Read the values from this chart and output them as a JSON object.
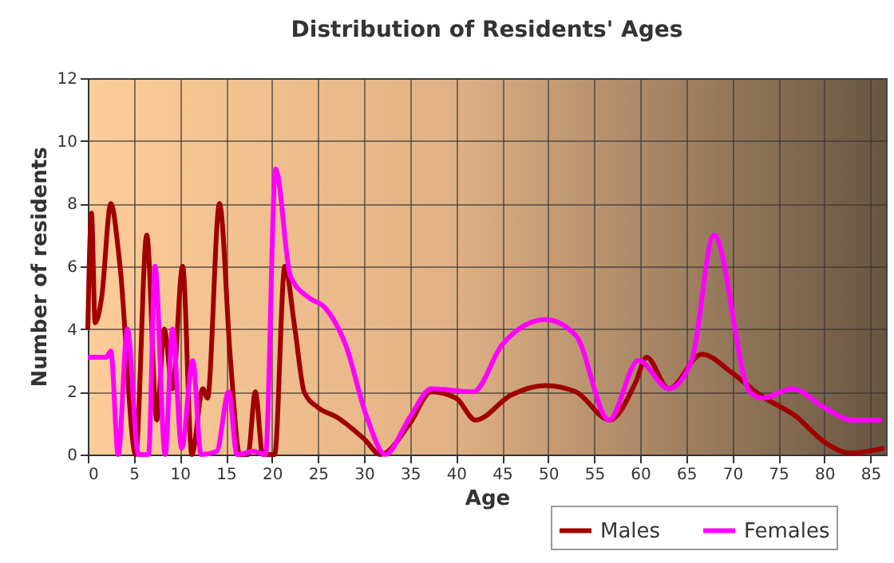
{
  "chart_data": {
    "type": "line",
    "title": "Distribution of Residents' Ages",
    "xlabel": "Age",
    "ylabel": "Number of residents",
    "xlim": [
      0,
      86.7
    ],
    "xticks": [
      0,
      5,
      10,
      15,
      20,
      25,
      30,
      35,
      40,
      45,
      50,
      55,
      60,
      65,
      70,
      75,
      80,
      85
    ],
    "ylim": [
      0,
      12
    ],
    "yticks": [
      0,
      2,
      4,
      6,
      8,
      10,
      12
    ],
    "grid": true,
    "legend": "bottom",
    "series": [
      {
        "name": "Males",
        "color": "#a00000",
        "x": [
          0,
          0.4,
          0.8,
          1.5,
          2.5,
          3.5,
          5.2,
          6.4,
          7.5,
          8.3,
          9.2,
          10.3,
          11.3,
          12.5,
          13,
          14.3,
          15.5,
          16.5,
          17.4,
          18.2,
          19,
          20.3,
          21.4,
          22.5,
          23.5,
          25,
          27,
          30,
          31.8,
          35,
          37.3,
          40,
          42.1,
          46,
          49.7,
          53,
          56.7,
          59.5,
          60.7,
          63.1,
          66.7,
          70,
          73,
          77,
          80,
          82.8,
          86.5
        ],
        "values": [
          4,
          7.7,
          4.2,
          5,
          8,
          6,
          0,
          7,
          1.1,
          4,
          2.1,
          6,
          0,
          2.1,
          1.8,
          8,
          3,
          0,
          0,
          2,
          0,
          0,
          6,
          4,
          2,
          1.5,
          1.2,
          0.5,
          0,
          1,
          2,
          1.8,
          1.1,
          1.9,
          2.2,
          2,
          1.1,
          2.3,
          3.1,
          2.1,
          3.2,
          2.6,
          1.9,
          1.2,
          0.4,
          0.05,
          0.2
        ]
      },
      {
        "name": "Females",
        "color": "#ff00ff",
        "x": [
          0,
          2,
          2.5,
          3.3,
          4.3,
          5.5,
          6.6,
          7.3,
          8.4,
          9.2,
          10.2,
          11.4,
          12.3,
          14,
          15.3,
          16.2,
          18,
          19.3,
          20.4,
          22,
          24,
          25.7,
          28,
          30.3,
          32.3,
          35,
          37.3,
          41.9,
          45,
          49.7,
          53,
          56.6,
          59.8,
          63.1,
          65.6,
          68,
          71.9,
          73.3,
          76.5,
          80,
          82.9,
          86.2
        ],
        "values": [
          3.1,
          3.1,
          3.3,
          0,
          4,
          0,
          0,
          6,
          0,
          4,
          0.2,
          3,
          0,
          0.1,
          2,
          0,
          0.1,
          0,
          9.1,
          5.7,
          5,
          4.7,
          3.5,
          1.2,
          0,
          1.2,
          2.1,
          2,
          3.5,
          4.3,
          3.8,
          1.1,
          3,
          2.1,
          3,
          7,
          2,
          1.8,
          2.1,
          1.5,
          1.1,
          1.1
        ]
      }
    ]
  }
}
